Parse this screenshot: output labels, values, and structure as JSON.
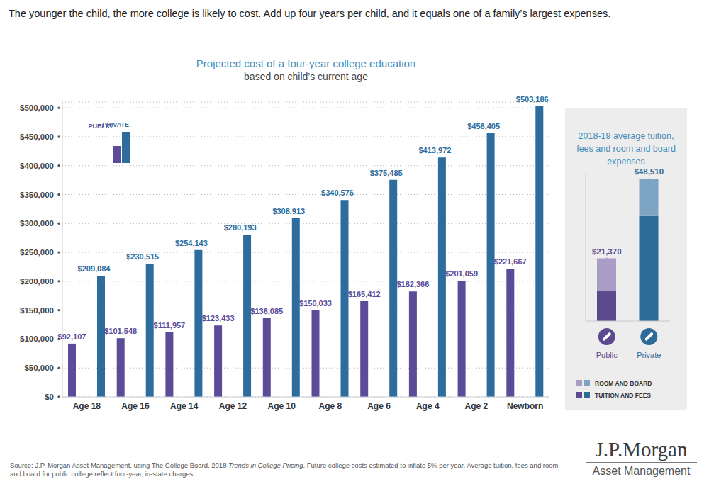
{
  "header": "The younger the child, the more college is likely to cost. Add up four years per child, and it equals one of a family’s largest expenses.",
  "chart_data": [
    {
      "type": "bar",
      "title": "Projected cost of a four-year college education",
      "subtitle": "based on child’s current age",
      "categories": [
        "Age 18",
        "Age 16",
        "Age 14",
        "Age 12",
        "Age 10",
        "Age 8",
        "Age 6",
        "Age 4",
        "Age 2",
        "Newborn"
      ],
      "series": [
        {
          "name": "PUBLIC",
          "color": "#5b4b99",
          "values": [
            92107,
            101548,
            111957,
            123433,
            136085,
            150033,
            165412,
            182366,
            201059,
            221667
          ],
          "value_labels": [
            "$92,107",
            "$101,548",
            "$111,957",
            "$123,433",
            "$136,085",
            "$150,033",
            "$165,412",
            "$182,366",
            "$201,059",
            "$221,667"
          ]
        },
        {
          "name": "PRIVATE",
          "color": "#2c6d9d",
          "values": [
            209084,
            230515,
            254143,
            280193,
            308913,
            340576,
            375485,
            413972,
            456405,
            503186
          ],
          "value_labels": [
            "$209,084",
            "$230,515",
            "$254,143",
            "$280,193",
            "$308,913",
            "$340,576",
            "$375,485",
            "$413,972",
            "$456,405",
            "$503,186"
          ]
        }
      ],
      "ylim": [
        0,
        510000
      ],
      "yticks": [
        {
          "value": 0,
          "label": "$0"
        },
        {
          "value": 50000,
          "label": "$50,000"
        },
        {
          "value": 100000,
          "label": "$100,000"
        },
        {
          "value": 150000,
          "label": "$150,000"
        },
        {
          "value": 200000,
          "label": "$200,000"
        },
        {
          "value": 250000,
          "label": "$250,000"
        },
        {
          "value": 300000,
          "label": "$300,000"
        },
        {
          "value": 350000,
          "label": "$350,000"
        },
        {
          "value": 400000,
          "label": "$400,000"
        },
        {
          "value": 450000,
          "label": "$450,000"
        },
        {
          "value": 500000,
          "label": "$500,000"
        }
      ],
      "grid": true,
      "legend": "top-left",
      "data_labels": true
    },
    {
      "type": "bar",
      "title": "2018-19 average tuition, fees and room and board expenses",
      "categories": [
        "Public",
        "Private"
      ],
      "series": [
        {
          "name": "TUITION AND FEES",
          "colors": [
            "#5b4b8e",
            "#2d6b98"
          ],
          "values": [
            10230,
            35830
          ]
        },
        {
          "name": "ROOM AND BOARD",
          "colors": [
            "#a99cc6",
            "#7ea4c4"
          ],
          "values": [
            11140,
            12680
          ]
        }
      ],
      "stacked": true,
      "totals": [
        21370,
        48510
      ],
      "total_labels": [
        "$21,370",
        "$48,510"
      ],
      "ylim": [
        0,
        50000
      ],
      "tick_labels": "x",
      "legend": "bottom"
    }
  ],
  "source": [
    "Source: J.P. Morgan Asset Management, using The College Board, 2018 ",
    "Trends in College Pricing",
    ". Future college costs estimated to inflate 5% per year. Average tuition, fees and room and board for public college reflect four-year, in-state charges."
  ],
  "logo": [
    "J.P.Morgan",
    "Asset Management"
  ]
}
